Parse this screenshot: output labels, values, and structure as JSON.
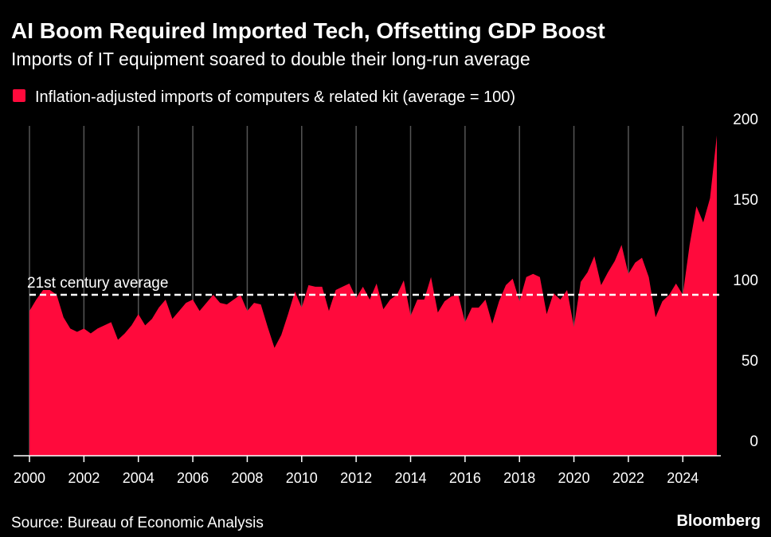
{
  "chart_data": {
    "type": "area",
    "title": "AI Boom Required Imported Tech, Offsetting GDP Boost",
    "subtitle": "Imports of IT equipment soared to double their long-run average",
    "source": "Source: Bureau of Economic Analysis",
    "brand": "Bloomberg",
    "average": {
      "value": 100,
      "label": "21st century average"
    },
    "x": [
      2000,
      2000.25,
      2000.5,
      2000.75,
      2001,
      2001.25,
      2001.5,
      2001.75,
      2002,
      2002.25,
      2002.5,
      2002.75,
      2003,
      2003.25,
      2003.5,
      2003.75,
      2004,
      2004.25,
      2004.5,
      2004.75,
      2005,
      2005.25,
      2005.5,
      2005.75,
      2006,
      2006.25,
      2006.5,
      2006.75,
      2007,
      2007.25,
      2007.5,
      2007.75,
      2008,
      2008.25,
      2008.5,
      2008.75,
      2009,
      2009.25,
      2009.5,
      2009.75,
      2010,
      2010.25,
      2010.5,
      2010.75,
      2011,
      2011.25,
      2011.5,
      2011.75,
      2012,
      2012.25,
      2012.5,
      2012.75,
      2013,
      2013.25,
      2013.5,
      2013.75,
      2014,
      2014.25,
      2014.5,
      2014.75,
      2015,
      2015.25,
      2015.5,
      2015.75,
      2016,
      2016.25,
      2016.5,
      2016.75,
      2017,
      2017.25,
      2017.5,
      2017.75,
      2018,
      2018.25,
      2018.5,
      2018.75,
      2019,
      2019.25,
      2019.5,
      2019.75,
      2020,
      2020.25,
      2020.5,
      2020.75,
      2021,
      2021.25,
      2021.5,
      2021.75,
      2022,
      2022.25,
      2022.5,
      2022.75,
      2023,
      2023.25,
      2023.5,
      2023.75,
      2024,
      2024.25,
      2024.5,
      2024.75,
      2025,
      2025.25
    ],
    "series": [
      {
        "name": "Inflation-adjusted imports of computers & related kit (average = 100)",
        "color": "#ff0a3c",
        "values": [
          90,
          97,
          103,
          103,
          100,
          86,
          79,
          77,
          79,
          76,
          79,
          81,
          83,
          72,
          76,
          81,
          88,
          81,
          85,
          92,
          97,
          85,
          90,
          95,
          97,
          90,
          95,
          100,
          95,
          94,
          97,
          100,
          90,
          95,
          94,
          80,
          67,
          75,
          88,
          102,
          92,
          106,
          105,
          105,
          90,
          103,
          105,
          107,
          98,
          105,
          97,
          107,
          91,
          97,
          100,
          109,
          87,
          97,
          97,
          111,
          89,
          96,
          99,
          100,
          83,
          92,
          92,
          97,
          82,
          96,
          106,
          110,
          96,
          111,
          113,
          111,
          88,
          101,
          97,
          103,
          80,
          108,
          114,
          124,
          106,
          114,
          121,
          131,
          113,
          120,
          123,
          111,
          86,
          96,
          100,
          107,
          100,
          131,
          155,
          145,
          160,
          199
        ]
      }
    ],
    "xlim": [
      2000,
      2025.25
    ],
    "xticks": [
      2000,
      2002,
      2004,
      2006,
      2008,
      2010,
      2012,
      2014,
      2016,
      2018,
      2020,
      2022,
      2024
    ],
    "ylim": [
      0,
      200
    ],
    "yticks": [
      0,
      50,
      100,
      150,
      200
    ],
    "grid": true
  }
}
